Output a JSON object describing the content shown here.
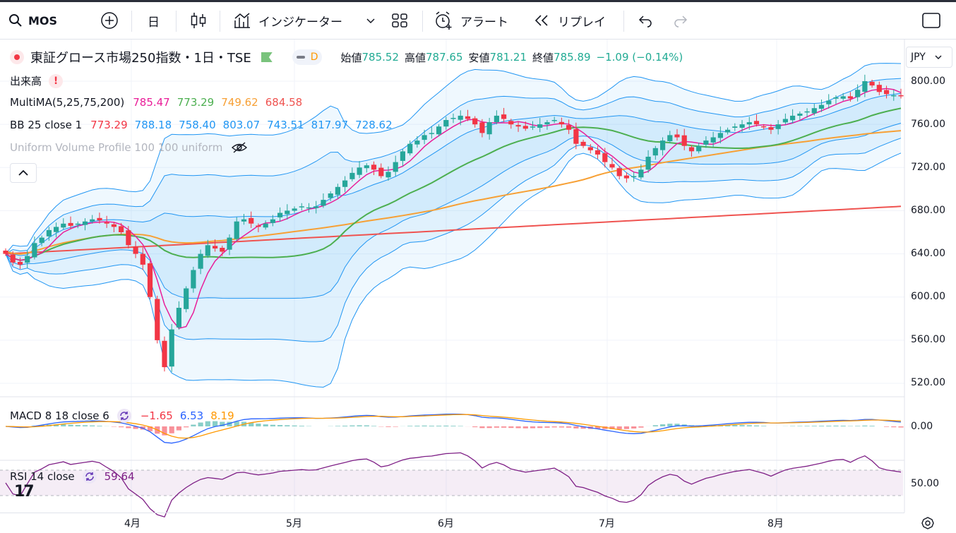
{
  "toolbar": {
    "symbol": "MOS",
    "interval": "日",
    "indicators_label": "インジケーター",
    "alert_label": "アラート",
    "replay_label": "リプレイ"
  },
  "legend": {
    "title": "東証グロース市場250指数・1日・TSE",
    "delay_badge": "D",
    "open_label": "始値",
    "open": "785.52",
    "high_label": "高値",
    "high": "787.65",
    "low_label": "安値",
    "low": "781.21",
    "close_label": "終値",
    "close": "785.89",
    "change": "−1.09 (−0.14%)",
    "volume_label": "出来高",
    "multima_label": "MultiMA(5,25,75,200)",
    "multima_values": [
      "785.47",
      "773.29",
      "749.62",
      "684.58"
    ],
    "bb_label": "BB 25 close 1",
    "bb_values": [
      "773.29",
      "788.18",
      "758.40",
      "803.07",
      "743.51",
      "817.97",
      "728.62"
    ],
    "vp_label": "Uniform Volume Profile 100 100 uniform"
  },
  "currency": "JPY",
  "price_axis": [
    "800.00",
    "760.00",
    "720.00",
    "680.00",
    "640.00",
    "600.00",
    "560.00",
    "520.00"
  ],
  "macd": {
    "label": "MACD 8 18 close 6",
    "values": [
      "−1.65",
      "6.53",
      "8.19"
    ],
    "axis": "0.00"
  },
  "rsi": {
    "label": "RSI 14 close",
    "value": "59.64",
    "axis": "50.00"
  },
  "time_axis": [
    "4月",
    "5月",
    "6月",
    "7月",
    "8月"
  ],
  "colors": {
    "up": "#26a69a",
    "down": "#f23645",
    "ma5": "#e91e99",
    "ma25": "#4caf50",
    "ma75": "#f7a035",
    "ma200": "#ef5350",
    "bb": "#2196f3",
    "macd": "#2962ff",
    "signal": "#ff9800",
    "rsi": "#7e1f86"
  },
  "chart_data": {
    "type": "candlestick",
    "period": "daily",
    "price_range": [
      505,
      820
    ],
    "closes": [
      640,
      632,
      630,
      638,
      650,
      655,
      662,
      665,
      668,
      666,
      668,
      670,
      672,
      671,
      668,
      665,
      660,
      648,
      640,
      630,
      600,
      560,
      535,
      570,
      590,
      608,
      625,
      640,
      648,
      645,
      642,
      655,
      670,
      672,
      668,
      665,
      668,
      672,
      678,
      680,
      682,
      684,
      683,
      684,
      690,
      696,
      702,
      708,
      715,
      720,
      722,
      718,
      712,
      716,
      725,
      735,
      742,
      745,
      750,
      752,
      758,
      764,
      766,
      768,
      765,
      760,
      752,
      762,
      768,
      765,
      760,
      758,
      756,
      758,
      760,
      762,
      764,
      760,
      755,
      742,
      740,
      736,
      732,
      725,
      720,
      712,
      710,
      712,
      718,
      730,
      738,
      745,
      750,
      748,
      740,
      735,
      740,
      745,
      748,
      752,
      755,
      758,
      760,
      762,
      760,
      758,
      755,
      760,
      765,
      768,
      770,
      772,
      775,
      778,
      782,
      785,
      786,
      784,
      792,
      800,
      796,
      790,
      788,
      787,
      786
    ]
  }
}
